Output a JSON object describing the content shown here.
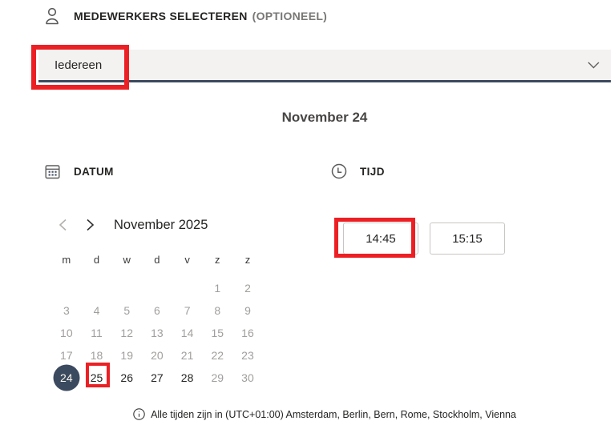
{
  "colors": {
    "annotation_red": "#ec2024",
    "slate_accent": "#3b4a5f",
    "field_background": "#f3f2f1",
    "disabled_text": "#a19f9d",
    "dark_text": "#252423"
  },
  "icons": {
    "staff": "person-icon",
    "date": "calendar-icon",
    "time": "clock-icon",
    "dropdown": "chevron-down-icon",
    "prev_month": "chevron-left-icon",
    "next_month": "chevron-right-icon",
    "footer": "info-icon"
  },
  "staff_section": {
    "title": "MEDEWERKERS SELECTEREN",
    "optional_label": "(OPTIONEEL)",
    "dropdown_value": "Iedereen"
  },
  "selected_date_title": "November 24",
  "date_section": {
    "label": "DATUM",
    "calendar": {
      "month_label": "November 2025",
      "weekdays": [
        "m",
        "d",
        "w",
        "d",
        "v",
        "z",
        "z"
      ],
      "weeks": [
        [
          "",
          "",
          "",
          "",
          "",
          "1",
          "2"
        ],
        [
          "3",
          "4",
          "5",
          "6",
          "7",
          "8",
          "9"
        ],
        [
          "10",
          "11",
          "12",
          "13",
          "14",
          "15",
          "16"
        ],
        [
          "17",
          "18",
          "19",
          "20",
          "21",
          "22",
          "23"
        ],
        [
          "24",
          "25",
          "26",
          "27",
          "28",
          "29",
          "30"
        ]
      ],
      "selected_day": "24",
      "enabled_days": [
        "24",
        "25",
        "26",
        "27",
        "28"
      ]
    }
  },
  "time_section": {
    "label": "TIJD",
    "slots": [
      {
        "time": "14:45",
        "annotated": true
      },
      {
        "time": "15:15",
        "annotated": false
      }
    ]
  },
  "footer": {
    "timezone_note": "Alle tijden zijn in (UTC+01:00) Amsterdam, Berlin, Bern, Rome, Stockholm, Vienna"
  }
}
